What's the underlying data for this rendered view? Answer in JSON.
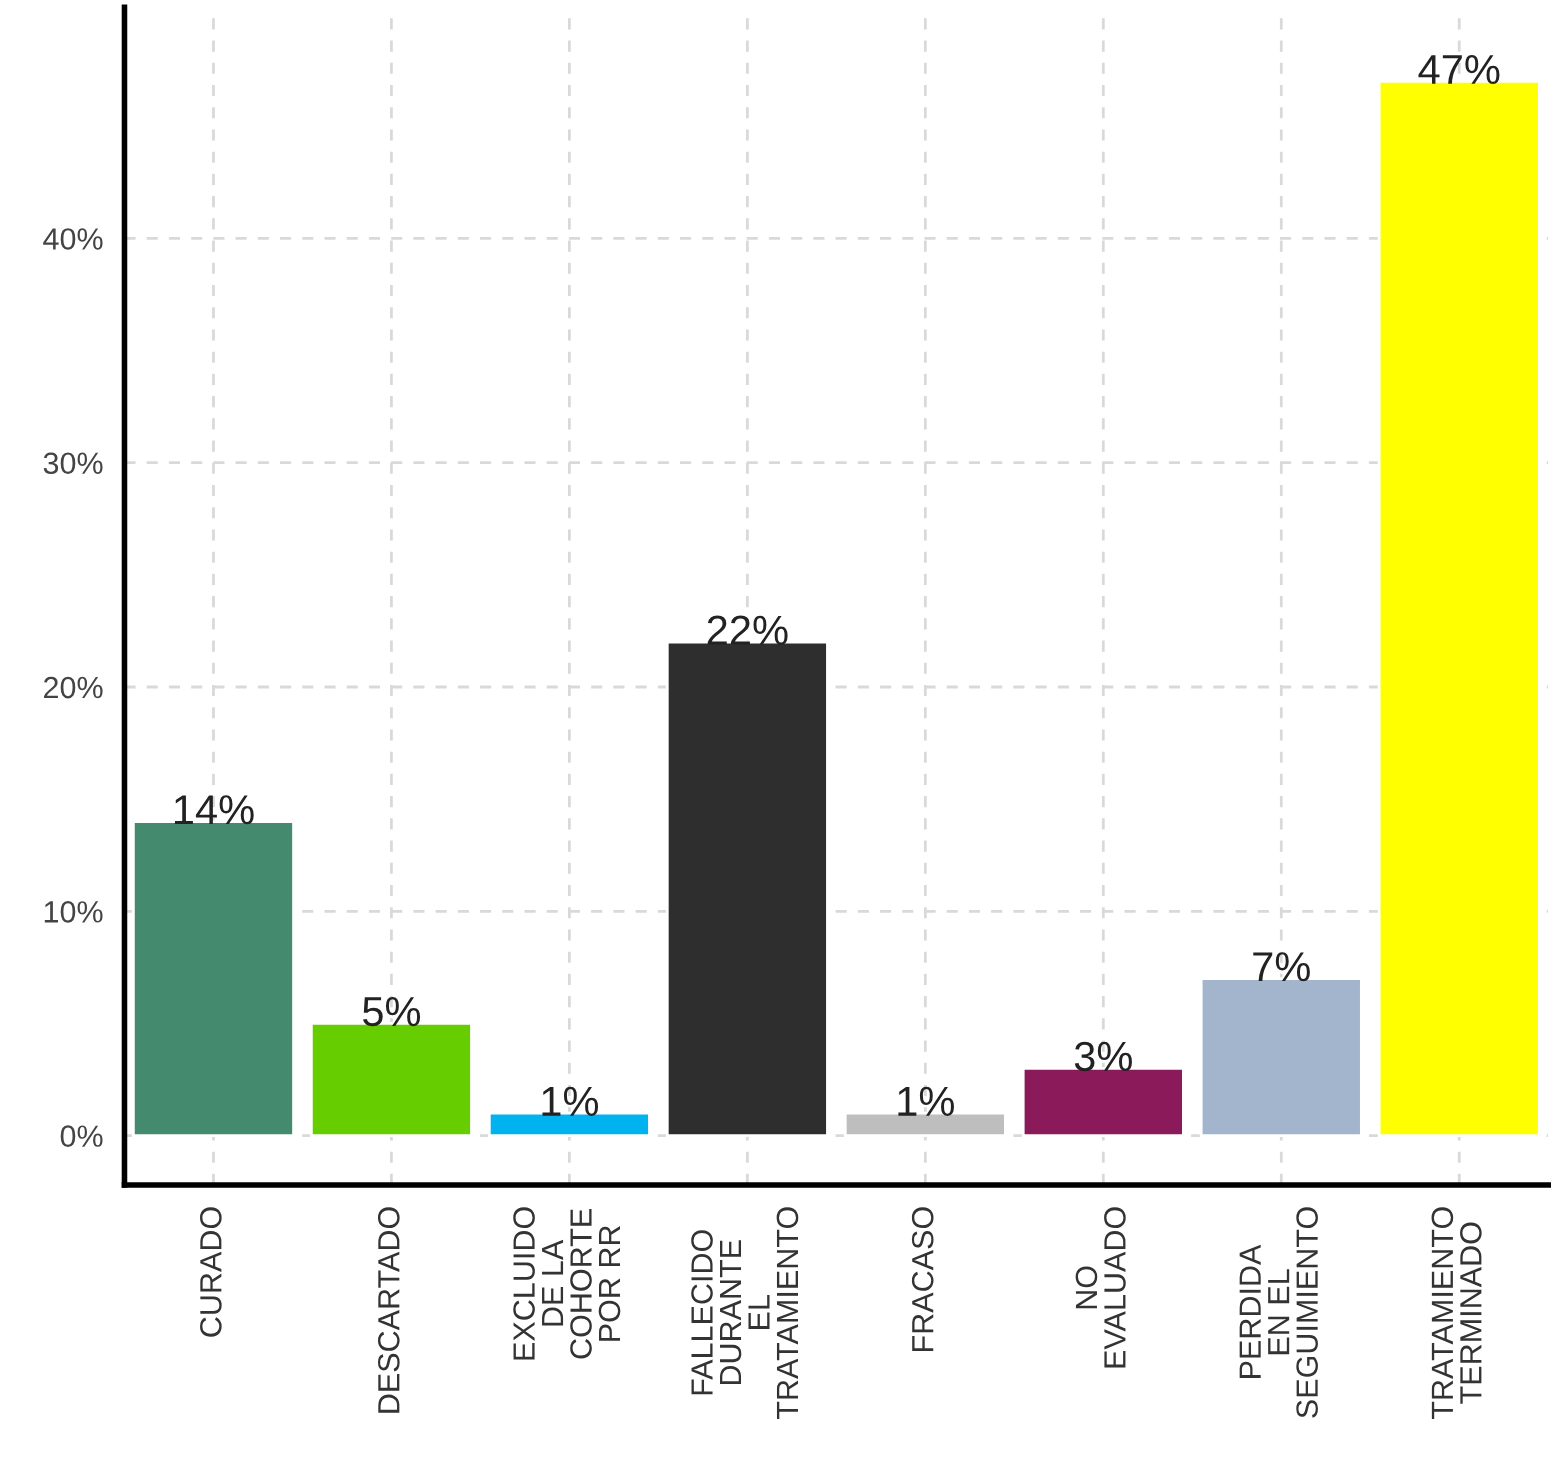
{
  "chart_data": {
    "type": "bar",
    "categories": [
      "CURADO",
      "DESCARTADO",
      "EXCLUIDO\nDE LA\nCOHORTE\nPOR RR",
      "FALLECIDO\nDURANTE\nEL\nTRATAMIENTO",
      "FRACASO",
      "NO\nEVALUADO",
      "PERDIDA\nEN EL\nSEGUIMIENTO",
      "TRATAMIENTO\nTERMINADO"
    ],
    "values": [
      14,
      5,
      1,
      22,
      1,
      3,
      7,
      47
    ],
    "colors": [
      "#448a6e",
      "#66cd00",
      "#00b2ee",
      "#2e2e2e",
      "#bebebe",
      "#8b1a5a",
      "#a2b5cd",
      "#ffff00"
    ],
    "value_labels": [
      "14%",
      "5%",
      "1%",
      "22%",
      "1%",
      "3%",
      "7%",
      "47%"
    ],
    "ylim": [
      -2.2,
      50.3
    ],
    "yticks": [
      {
        "value": 0,
        "label": "0%"
      },
      {
        "value": 10,
        "label": "10%"
      },
      {
        "value": 20,
        "label": "20%"
      },
      {
        "value": 30,
        "label": "30%"
      },
      {
        "value": 40,
        "label": "40%"
      }
    ],
    "grid": true
  }
}
